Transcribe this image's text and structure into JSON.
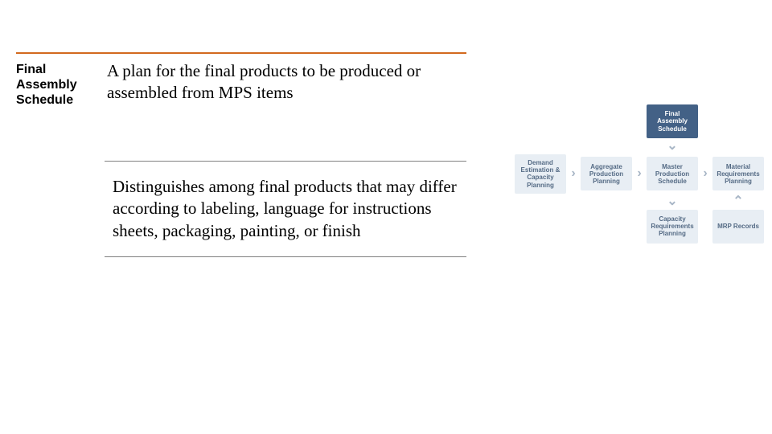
{
  "colors": {
    "orange_rule": "#d2691e",
    "thin_rule": "#808080",
    "node_light_bg": "#e8eef4",
    "node_light_text": "#556b85",
    "node_dark_bg": "#436186",
    "node_dark_text": "#ffffff",
    "chevron": "#a8b6c6"
  },
  "leftBlock": {
    "term": "Final Assembly Schedule",
    "definition": "A plan for the final products to be produced or assembled from MPS items"
  },
  "block2": {
    "body": "Distinguishes among final products that may differ according to labeling, language for instructions sheets, packaging, painting, or finish"
  },
  "diagram": {
    "top_node": "Final Assembly Schedule",
    "row": [
      "Demand Estimation & Capacity Planning",
      "Aggregate Production Planning",
      "Master Production Schedule",
      "Material Requirements Planning"
    ],
    "bottom_left": "Capacity Requirements Planning",
    "bottom_right": "MRP Records"
  }
}
